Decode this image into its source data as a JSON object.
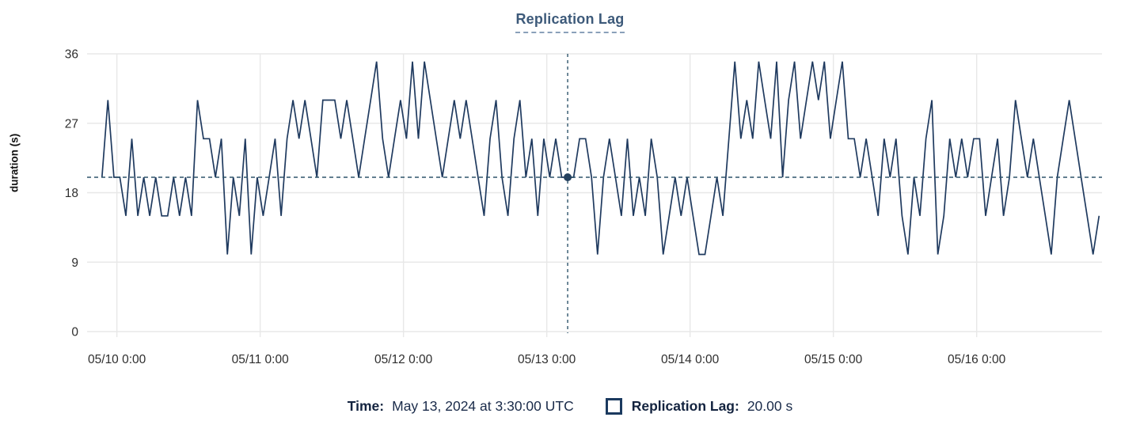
{
  "chart": {
    "title": "Replication Lag",
    "ylabel": "duration (s)"
  },
  "tooltip": {
    "time_label": "Time:",
    "time_value": "May 13, 2024 at 3:30:00 UTC",
    "series_label": "Replication Lag:",
    "series_value": "20.00 s"
  },
  "chart_data": {
    "type": "line",
    "title": "Replication Lag",
    "xlabel": "",
    "ylabel": "duration (s)",
    "ylim": [
      0,
      36
    ],
    "y_ticks": [
      0,
      9,
      18,
      27,
      36
    ],
    "x_ticks": [
      "05/10 0:00",
      "05/11 0:00",
      "05/12 0:00",
      "05/13 0:00",
      "05/14 0:00",
      "05/15 0:00",
      "05/16 0:00"
    ],
    "x_start": "2024-05-09 21:30 UTC",
    "point_interval_hours": 1,
    "tick_first_offset_hours": 2.5,
    "tick_interval_hours": 24,
    "grid": true,
    "legend_position": "bottom",
    "series": [
      {
        "name": "Replication Lag",
        "color": "#1f3a5f",
        "values": [
          20,
          30,
          20,
          20,
          15,
          25,
          15,
          20,
          15,
          20,
          15,
          15,
          20,
          15,
          20,
          15,
          30,
          25,
          25,
          20,
          25,
          10,
          20,
          15,
          25,
          10,
          20,
          15,
          20,
          25,
          15,
          25,
          30,
          25,
          30,
          25,
          20,
          30,
          30,
          30,
          25,
          30,
          25,
          20,
          25,
          30,
          35,
          25,
          20,
          25,
          30,
          25,
          35,
          25,
          35,
          30,
          25,
          20,
          25,
          30,
          25,
          30,
          25,
          20,
          15,
          25,
          30,
          20,
          15,
          25,
          30,
          20,
          25,
          15,
          25,
          20,
          25,
          20,
          20,
          20,
          25,
          25,
          20,
          10,
          20,
          25,
          20,
          15,
          25,
          15,
          20,
          15,
          25,
          20,
          10,
          15,
          20,
          15,
          20,
          15,
          10,
          10,
          15,
          20,
          15,
          25,
          35,
          25,
          30,
          25,
          35,
          30,
          25,
          35,
          20,
          30,
          35,
          25,
          30,
          35,
          30,
          35,
          25,
          30,
          35,
          25,
          25,
          20,
          25,
          20,
          15,
          25,
          20,
          25,
          15,
          10,
          20,
          15,
          25,
          30,
          10,
          15,
          25,
          20,
          25,
          20,
          25,
          25,
          15,
          20,
          25,
          15,
          20,
          30,
          25,
          20,
          25,
          20,
          15,
          10,
          20,
          25,
          30,
          25,
          20,
          15,
          10,
          15
        ]
      }
    ],
    "crosshair": {
      "selected_index": 78,
      "selected_time": "May 13, 2024 at 3:30:00 UTC",
      "selected_value": 20,
      "h_line_value": 20,
      "color": "#2f556b"
    },
    "colors": {
      "gridline": "#e8e8e8",
      "tick_text": "#2e2e2e",
      "series": "#1f3a5f",
      "dot": "#24415f"
    }
  }
}
